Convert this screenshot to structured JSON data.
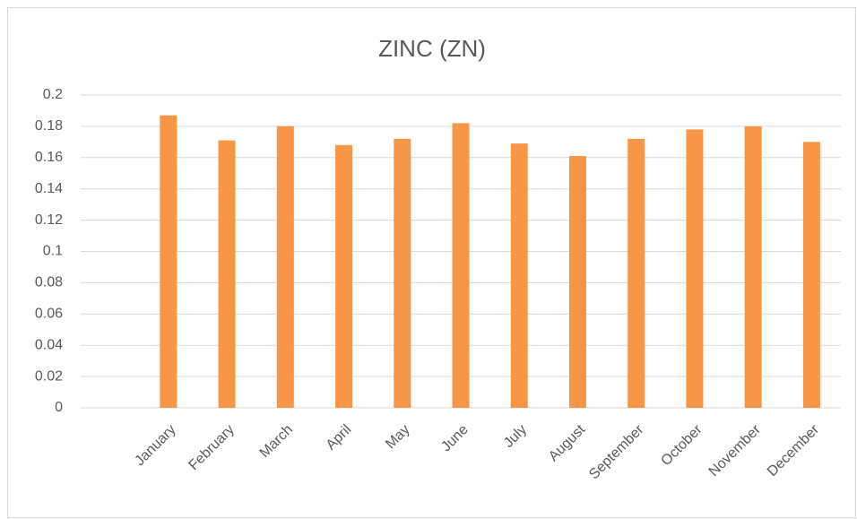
{
  "chart_data": {
    "type": "bar",
    "title": "ZINC (ZN)",
    "categories": [
      null,
      "January",
      "February",
      "March",
      "April",
      "May",
      "June",
      "July",
      "August",
      "September",
      "October",
      "November",
      "December"
    ],
    "values": [
      null,
      0.187,
      0.171,
      0.18,
      0.168,
      0.172,
      0.182,
      0.169,
      0.161,
      0.172,
      0.178,
      0.18,
      0.17
    ],
    "color": "#f79646",
    "ylim": [
      0,
      0.2
    ],
    "yticks": [
      0,
      0.02,
      0.04,
      0.06,
      0.08,
      0.1,
      0.12,
      0.14,
      0.16,
      0.18,
      0.2
    ],
    "grid": true
  }
}
